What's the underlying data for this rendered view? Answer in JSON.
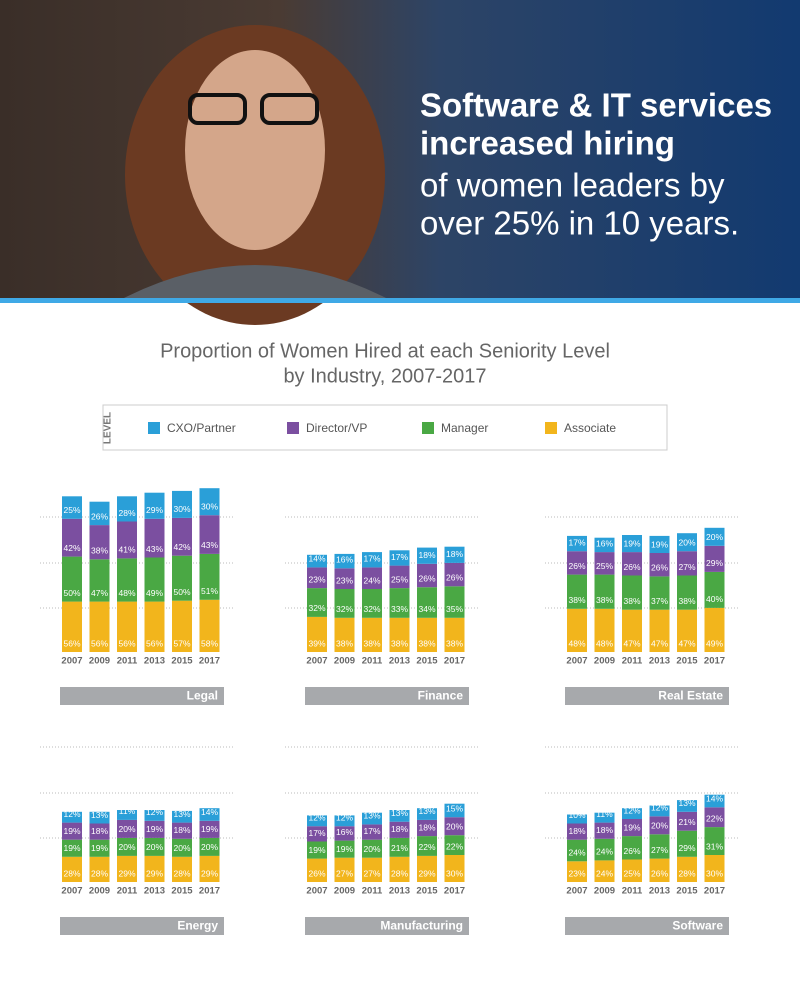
{
  "header": {
    "bold_lines": [
      "Software & IT services",
      "increased hiring"
    ],
    "lines": [
      "of women leaders by",
      "over 25% in 10 years."
    ]
  },
  "title": [
    "Proportion of Women Hired at each Seniority Level",
    "by Industry, 2007-2017"
  ],
  "legend": {
    "title": "LEVEL",
    "items": [
      {
        "name": "CXO/Partner",
        "color": "#2a9fd8"
      },
      {
        "name": "Director/VP",
        "color": "#7b4fa0"
      },
      {
        "name": "Manager",
        "color": "#4aa844"
      },
      {
        "name": "Associate",
        "color": "#f2b51c"
      }
    ]
  },
  "chart_data": [
    {
      "type": "bar",
      "stacked": true,
      "title": "Legal",
      "categories": [
        "2007",
        "2009",
        "2011",
        "2013",
        "2015",
        "2017"
      ],
      "series": [
        {
          "values": [
            25,
            26,
            28,
            29,
            30,
            30
          ],
          "value_labels": [
            "25%",
            "26%",
            "28%",
            "29%",
            "30%",
            "30%"
          ]
        },
        {
          "values": [
            42,
            38,
            41,
            43,
            42,
            43
          ],
          "value_labels": [
            "42%",
            "38%",
            "41%",
            "43%",
            "42%",
            "43%"
          ]
        },
        {
          "values": [
            50,
            47,
            48,
            49,
            50,
            51
          ],
          "value_labels": [
            "50%",
            "47%",
            "48%",
            "49%",
            "50%",
            "51%"
          ]
        },
        {
          "values": [
            56,
            56,
            56,
            56,
            57,
            58
          ],
          "value_labels": [
            "56%",
            "56%",
            "56%",
            "56%",
            "57%",
            "58%"
          ]
        }
      ]
    },
    {
      "type": "bar",
      "stacked": true,
      "title": "Finance",
      "categories": [
        "2007",
        "2009",
        "2011",
        "2013",
        "2015",
        "2017"
      ],
      "series": [
        {
          "values": [
            14,
            16,
            17,
            17,
            18,
            18
          ],
          "value_labels": [
            "14%",
            "16%",
            "17%",
            "17%",
            "18%",
            "18%"
          ]
        },
        {
          "values": [
            23,
            23,
            24,
            25,
            26,
            26
          ],
          "value_labels": [
            "23%",
            "23%",
            "24%",
            "25%",
            "26%",
            "26%"
          ]
        },
        {
          "values": [
            32,
            32,
            32,
            33,
            34,
            35
          ],
          "value_labels": [
            "32%",
            "32%",
            "32%",
            "33%",
            "34%",
            "35%"
          ]
        },
        {
          "values": [
            39,
            38,
            38,
            38,
            38,
            38
          ],
          "value_labels": [
            "39%",
            "38%",
            "38%",
            "38%",
            "38%",
            "38%"
          ]
        }
      ]
    },
    {
      "type": "bar",
      "stacked": true,
      "title": "Real Estate",
      "categories": [
        "2007",
        "2009",
        "2011",
        "2013",
        "2015",
        "2017"
      ],
      "series": [
        {
          "values": [
            17,
            16,
            19,
            19,
            20,
            20
          ],
          "value_labels": [
            "17%",
            "16%",
            "19%",
            "19%",
            "20%",
            "20%"
          ]
        },
        {
          "values": [
            26,
            25,
            26,
            26,
            27,
            29
          ],
          "value_labels": [
            "26%",
            "25%",
            "26%",
            "26%",
            "27%",
            "29%"
          ]
        },
        {
          "values": [
            38,
            38,
            38,
            37,
            38,
            40
          ],
          "value_labels": [
            "38%",
            "38%",
            "38%",
            "37%",
            "38%",
            "40%"
          ]
        },
        {
          "values": [
            48,
            48,
            47,
            47,
            47,
            49
          ],
          "value_labels": [
            "48%",
            "48%",
            "47%",
            "47%",
            "47%",
            "49%"
          ]
        }
      ]
    },
    {
      "type": "bar",
      "stacked": true,
      "title": "Energy",
      "categories": [
        "2007",
        "2009",
        "2011",
        "2013",
        "2015",
        "2017"
      ],
      "series": [
        {
          "values": [
            12,
            13,
            11,
            12,
            13,
            14
          ],
          "value_labels": [
            "12%",
            "13%",
            "11%",
            "12%",
            "13%",
            "14%"
          ]
        },
        {
          "values": [
            19,
            18,
            20,
            19,
            18,
            19
          ],
          "value_labels": [
            "19%",
            "18%",
            "20%",
            "19%",
            "18%",
            "19%"
          ]
        },
        {
          "values": [
            19,
            19,
            20,
            20,
            20,
            20
          ],
          "value_labels": [
            "19%",
            "19%",
            "20%",
            "20%",
            "20%",
            "20%"
          ]
        },
        {
          "values": [
            28,
            28,
            29,
            29,
            28,
            29
          ],
          "value_labels": [
            "28%",
            "28%",
            "29%",
            "29%",
            "28%",
            "29%"
          ]
        }
      ]
    },
    {
      "type": "bar",
      "stacked": true,
      "title": "Manufacturing",
      "categories": [
        "2007",
        "2009",
        "2011",
        "2013",
        "2015",
        "2017"
      ],
      "series": [
        {
          "values": [
            12,
            12,
            13,
            13,
            13,
            15
          ],
          "value_labels": [
            "12%",
            "12%",
            "13%",
            "13%",
            "13%",
            "15%"
          ]
        },
        {
          "values": [
            17,
            16,
            17,
            18,
            18,
            20
          ],
          "value_labels": [
            "17%",
            "16%",
            "17%",
            "18%",
            "18%",
            "20%"
          ]
        },
        {
          "values": [
            19,
            19,
            20,
            21,
            22,
            22
          ],
          "value_labels": [
            "19%",
            "19%",
            "20%",
            "21%",
            "22%",
            "22%"
          ]
        },
        {
          "values": [
            26,
            27,
            27,
            28,
            29,
            30
          ],
          "value_labels": [
            "26%",
            "27%",
            "27%",
            "28%",
            "29%",
            "30%"
          ]
        }
      ]
    },
    {
      "type": "bar",
      "stacked": true,
      "title": "Software",
      "categories": [
        "2007",
        "2009",
        "2011",
        "2013",
        "2015",
        "2017"
      ],
      "series": [
        {
          "values": [
            10,
            11,
            12,
            12,
            13,
            14
          ],
          "value_labels": [
            "10%",
            "11%",
            "12%",
            "12%",
            "13%",
            "14%"
          ]
        },
        {
          "values": [
            18,
            18,
            19,
            20,
            21,
            22
          ],
          "value_labels": [
            "18%",
            "18%",
            "19%",
            "20%",
            "21%",
            "22%"
          ]
        },
        {
          "values": [
            24,
            24,
            26,
            27,
            29,
            31
          ],
          "value_labels": [
            "24%",
            "24%",
            "26%",
            "27%",
            "29%",
            "31%"
          ]
        },
        {
          "values": [
            23,
            24,
            25,
            26,
            28,
            30
          ],
          "value_labels": [
            "23%",
            "24%",
            "25%",
            "26%",
            "28%",
            "30%"
          ]
        }
      ]
    }
  ]
}
